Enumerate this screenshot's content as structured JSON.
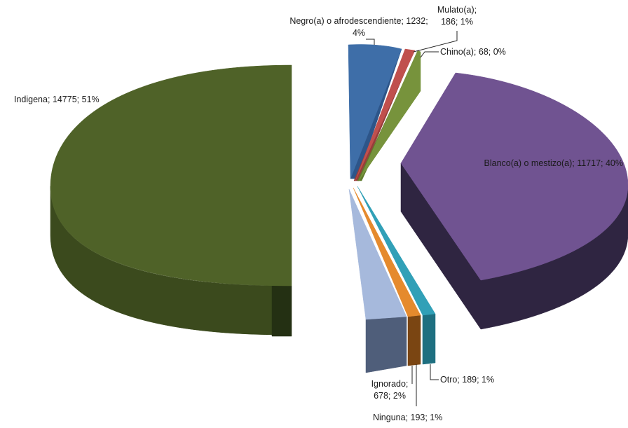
{
  "chart_data": {
    "type": "pie",
    "style": "3d-exploded",
    "title": "",
    "slices": [
      {
        "label": "Indigena",
        "value": 14775,
        "percent": "51%",
        "color": "#4f6228",
        "side": "#3b4a1d",
        "bottom": "#243013",
        "label_lines": [
          "Indigena; 14775; 51%"
        ]
      },
      {
        "label": "Negro(a) o afrodescendiente",
        "value": 1232,
        "percent": "4%",
        "color": "#3e6ea8",
        "side": "#2d5589",
        "label_lines": [
          "Negro(a) o afrodescendiente; 1232;",
          "4%"
        ]
      },
      {
        "label": "Mulato(a)",
        "value": 186,
        "percent": "1%",
        "color": "#c0504d",
        "side": "#963e3b",
        "label_lines": [
          "Mulato(a);",
          "186; 1%"
        ]
      },
      {
        "label": "Chino(a)",
        "value": 68,
        "percent": "0%",
        "color": "#77933c",
        "side": "#5f7a2c",
        "label_lines": [
          "Chino(a); 68; 0%"
        ]
      },
      {
        "label": "Blanco(a) o mestizo(a)",
        "value": 11717,
        "percent": "40%",
        "color": "#705391",
        "side": "#2f2541",
        "bottom": "#241c33",
        "label_lines": [
          "Blanco(a) o mestizo(a); 11717; 40%"
        ]
      },
      {
        "label": "Otro",
        "value": 189,
        "percent": "1%",
        "color": "#31a0b7",
        "side": "#1e6f80",
        "label_lines": [
          "Otro; 189; 1%"
        ]
      },
      {
        "label": "Ninguna",
        "value": 193,
        "percent": "1%",
        "color": "#e58a2d",
        "side": "#7a4512",
        "label_lines": [
          "Ninguna; 193; 1%"
        ]
      },
      {
        "label": "Ignorado",
        "value": 678,
        "percent": "2%",
        "color": "#a6b9dc",
        "side": "#4f5e7a",
        "label_lines": [
          "Ignorado;",
          "678; 2%"
        ]
      }
    ]
  }
}
